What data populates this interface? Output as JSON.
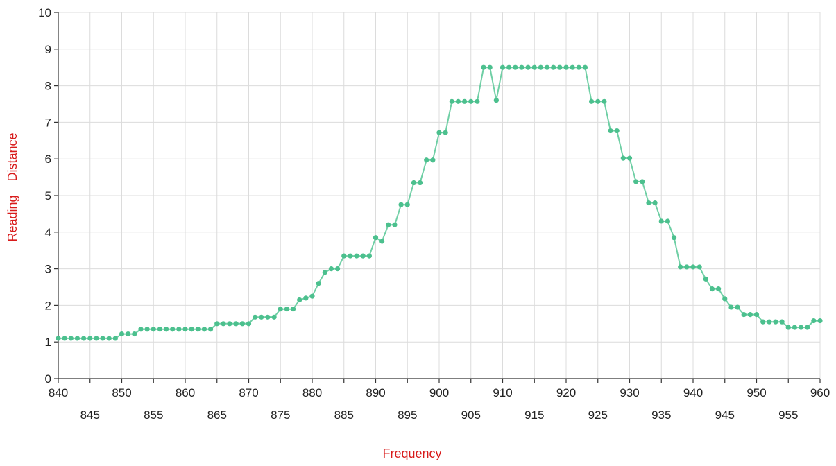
{
  "chart_data": {
    "type": "line",
    "title": "",
    "xlabel": "Frequency",
    "ylabel": "Reading    Distance",
    "xlim": [
      840,
      960
    ],
    "ylim": [
      0,
      10
    ],
    "x_ticks_row1": [
      "840",
      "850",
      "860",
      "870",
      "880",
      "890",
      "900",
      "910",
      "920",
      "930",
      "940",
      "950",
      "960"
    ],
    "x_ticks_row2": [
      "845",
      "855",
      "865",
      "875",
      "885",
      "895",
      "905",
      "915",
      "925",
      "935",
      "945",
      "955"
    ],
    "y_ticks": [
      "0",
      "1",
      "2",
      "3",
      "4",
      "5",
      "6",
      "7",
      "8",
      "9",
      "10"
    ],
    "grid": true,
    "line_color": "#6fcfa5",
    "marker_color": "#4cc08e",
    "series": [
      {
        "x": [
          840,
          841,
          842,
          843,
          844,
          845,
          846,
          847,
          848,
          849,
          850,
          851,
          852,
          853,
          854,
          855,
          856,
          857,
          858,
          859,
          860,
          861,
          862,
          863,
          864,
          865,
          866,
          867,
          868,
          869,
          870,
          871,
          872,
          873,
          874,
          875,
          876,
          877,
          878,
          879,
          880,
          881,
          882,
          883,
          884,
          885,
          886,
          887,
          888,
          889,
          890,
          891,
          892,
          893,
          894,
          895,
          896,
          897,
          898,
          899,
          900,
          901,
          902,
          903,
          904,
          905,
          906,
          907,
          908,
          909,
          910,
          911,
          912,
          913,
          914,
          915,
          916,
          917,
          918,
          919,
          920,
          921,
          922,
          923,
          924,
          925,
          926,
          927,
          928,
          929,
          930,
          931,
          932,
          933,
          934,
          935,
          936,
          937,
          938,
          939,
          940,
          941,
          942,
          943,
          944,
          945,
          946,
          947,
          948,
          949,
          950,
          951,
          952,
          953,
          954,
          955,
          956,
          957,
          958,
          959,
          960
        ],
        "y": [
          1.1,
          1.1,
          1.1,
          1.1,
          1.1,
          1.1,
          1.1,
          1.1,
          1.1,
          1.1,
          1.22,
          1.22,
          1.22,
          1.35,
          1.35,
          1.35,
          1.35,
          1.35,
          1.35,
          1.35,
          1.35,
          1.35,
          1.35,
          1.35,
          1.35,
          1.5,
          1.5,
          1.5,
          1.5,
          1.5,
          1.5,
          1.68,
          1.68,
          1.68,
          1.68,
          1.9,
          1.9,
          1.9,
          2.15,
          2.2,
          2.25,
          2.6,
          2.9,
          3.0,
          3.0,
          3.35,
          3.35,
          3.35,
          3.35,
          3.35,
          3.85,
          3.75,
          4.2,
          4.2,
          4.75,
          4.75,
          5.35,
          5.35,
          5.97,
          5.97,
          6.72,
          6.72,
          7.57,
          7.57,
          7.57,
          7.57,
          7.57,
          8.5,
          8.5,
          7.6,
          8.5,
          8.5,
          8.5,
          8.5,
          8.5,
          8.5,
          8.5,
          8.5,
          8.5,
          8.5,
          8.5,
          8.5,
          8.5,
          8.5,
          7.57,
          7.57,
          7.57,
          6.77,
          6.77,
          6.02,
          6.02,
          5.38,
          5.38,
          4.8,
          4.8,
          4.3,
          4.3,
          3.85,
          3.05,
          3.05,
          3.05,
          3.05,
          2.72,
          2.45,
          2.45,
          2.18,
          1.95,
          1.95,
          1.75,
          1.75,
          1.75,
          1.55,
          1.55,
          1.55,
          1.55,
          1.4,
          1.4,
          1.4,
          1.4,
          1.58,
          1.58
        ]
      }
    ]
  }
}
